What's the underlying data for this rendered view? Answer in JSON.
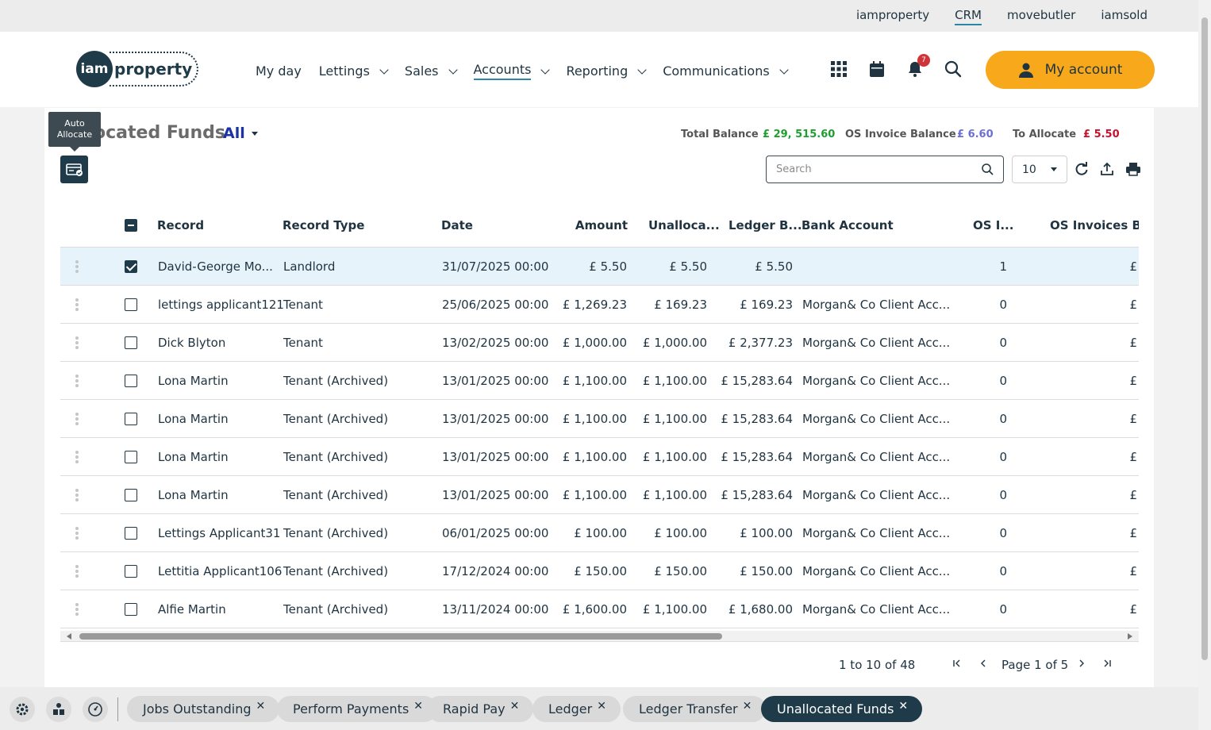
{
  "top_sites": [
    "iamproperty",
    "CRM",
    "movebutler",
    "iamsold"
  ],
  "top_active": "CRM",
  "logo": {
    "circle": "iam",
    "word": "property"
  },
  "nav": [
    {
      "label": "My day",
      "dropdown": false
    },
    {
      "label": "Lettings",
      "dropdown": true
    },
    {
      "label": "Sales",
      "dropdown": true
    },
    {
      "label": "Accounts",
      "dropdown": true,
      "active": true
    },
    {
      "label": "Reporting",
      "dropdown": true
    },
    {
      "label": "Communications",
      "dropdown": true
    }
  ],
  "notifications_count": "7",
  "account_button": "My account",
  "page": {
    "title": "ocated Funds",
    "filter": "All",
    "tooltip": "Auto Allocate",
    "balances": {
      "total_label": "Total Balance",
      "total_value": "£ 29, 515.60",
      "os_label": "OS Invoice Balance",
      "os_value": "£ 6.60",
      "alloc_label": "To Allocate",
      "alloc_value": "£ 5.50"
    },
    "colors": {
      "total": "#1e9e2e",
      "os": "#6b6fd4",
      "alloc": "#c8102e",
      "accent": "#f7a81b",
      "dark": "#1f3b4a"
    },
    "search_placeholder": "Search",
    "page_size": "10"
  },
  "table": {
    "headers": [
      "Record",
      "Record Type",
      "Date",
      "Amount",
      "Unalloca...",
      "Ledger B...",
      "Bank Account",
      "OS I...",
      "OS Invoices Bal"
    ],
    "rows": [
      {
        "record": "David-George Mo...",
        "type": "Landlord",
        "date": "31/07/2025 00:00",
        "amount": "£ 5.50",
        "unalloc": "£ 5.50",
        "ledger": "£ 5.50",
        "bank": "",
        "os": "1",
        "osbal": "£",
        "checked": true
      },
      {
        "record": "lettings applicant121",
        "type": "Tenant",
        "date": "25/06/2025 00:00",
        "amount": "£ 1,269.23",
        "unalloc": "£ 169.23",
        "ledger": "£ 169.23",
        "bank": "Morgan& Co Client Acc...",
        "os": "0",
        "osbal": "£",
        "checked": false
      },
      {
        "record": "Dick Blyton",
        "type": "Tenant",
        "date": "13/02/2025 00:00",
        "amount": "£ 1,000.00",
        "unalloc": "£ 1,000.00",
        "ledger": "£ 2,377.23",
        "bank": "Morgan& Co Client Acc...",
        "os": "0",
        "osbal": "£",
        "checked": false
      },
      {
        "record": "Lona Martin",
        "type": "Tenant (Archived)",
        "date": "13/01/2025 00:00",
        "amount": "£ 1,100.00",
        "unalloc": "£ 1,100.00",
        "ledger": "£ 15,283.64",
        "bank": "Morgan& Co Client Acc...",
        "os": "0",
        "osbal": "£",
        "checked": false
      },
      {
        "record": "Lona Martin",
        "type": "Tenant (Archived)",
        "date": "13/01/2025 00:00",
        "amount": "£ 1,100.00",
        "unalloc": "£ 1,100.00",
        "ledger": "£ 15,283.64",
        "bank": "Morgan& Co Client Acc...",
        "os": "0",
        "osbal": "£",
        "checked": false
      },
      {
        "record": "Lona Martin",
        "type": "Tenant (Archived)",
        "date": "13/01/2025 00:00",
        "amount": "£ 1,100.00",
        "unalloc": "£ 1,100.00",
        "ledger": "£ 15,283.64",
        "bank": "Morgan& Co Client Acc...",
        "os": "0",
        "osbal": "£",
        "checked": false
      },
      {
        "record": "Lona Martin",
        "type": "Tenant (Archived)",
        "date": "13/01/2025 00:00",
        "amount": "£ 1,100.00",
        "unalloc": "£ 1,100.00",
        "ledger": "£ 15,283.64",
        "bank": "Morgan& Co Client Acc...",
        "os": "0",
        "osbal": "£",
        "checked": false
      },
      {
        "record": "Lettings Applicant31",
        "type": "Tenant (Archived)",
        "date": "06/01/2025 00:00",
        "amount": "£ 100.00",
        "unalloc": "£ 100.00",
        "ledger": "£ 100.00",
        "bank": "Morgan& Co Client Acc...",
        "os": "0",
        "osbal": "£",
        "checked": false
      },
      {
        "record": "Lettitia Applicant106",
        "type": "Tenant (Archived)",
        "date": "17/12/2024 00:00",
        "amount": "£ 150.00",
        "unalloc": "£ 150.00",
        "ledger": "£ 150.00",
        "bank": "Morgan& Co Client Acc...",
        "os": "0",
        "osbal": "£",
        "checked": false
      },
      {
        "record": "Alfie Martin",
        "type": "Tenant (Archived)",
        "date": "13/11/2024 00:00",
        "amount": "£ 1,600.00",
        "unalloc": "£ 1,100.00",
        "ledger": "£ 1,680.00",
        "bank": "Morgan& Co Client Acc...",
        "os": "0",
        "osbal": "£",
        "checked": false
      }
    ]
  },
  "pager": {
    "summary": "1 to 10 of 48",
    "page_label": "Page 1 of 5"
  },
  "bottom_tabs": [
    {
      "label": "Jobs Outstanding",
      "active": false
    },
    {
      "label": "Perform Payments",
      "active": false
    },
    {
      "label": "Rapid Pay",
      "active": false
    },
    {
      "label": "Ledger",
      "active": false
    },
    {
      "label": "Ledger Transfer",
      "active": false
    },
    {
      "label": "Unallocated Funds",
      "active": true
    }
  ],
  "icons": [
    "apps-grid-icon",
    "calendar-icon",
    "bell-icon",
    "search-icon",
    "user-icon",
    "refresh-icon",
    "export-icon",
    "print-icon",
    "settings-icon",
    "team-icon",
    "dashboard-icon",
    "close-icon"
  ]
}
